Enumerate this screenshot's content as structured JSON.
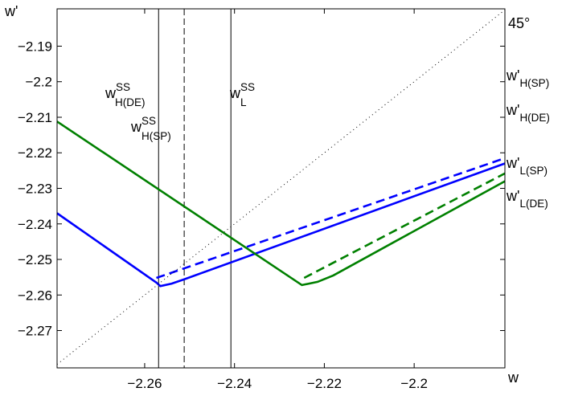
{
  "chart_data": {
    "type": "line",
    "xlabel": "w",
    "ylabel": "w'",
    "xlim": [
      -2.2795,
      -2.1798
    ],
    "ylim": [
      -2.2805,
      -2.1795
    ],
    "x_ticks": [
      -2.26,
      -2.24,
      -2.22,
      -2.2
    ],
    "x_tick_labels": [
      "−2.26",
      "−2.24",
      "−2.22",
      "−2.2"
    ],
    "y_ticks": [
      -2.19,
      -2.2,
      -2.21,
      -2.22,
      -2.23,
      -2.24,
      -2.25,
      -2.26,
      -2.27
    ],
    "y_tick_labels": [
      "−2.19",
      "−2.2",
      "−2.21",
      "−2.22",
      "−2.23",
      "−2.24",
      "−2.25",
      "−2.26",
      "−2.27"
    ],
    "grid": false,
    "series": [
      {
        "key": "H_DE",
        "color": "#0000ff",
        "style": "solid",
        "points": [
          [
            -2.2795,
            -2.237
          ],
          [
            -2.2574,
            -2.2565
          ],
          [
            -2.2565,
            -2.2575
          ],
          [
            -2.254,
            -2.2568
          ],
          [
            -2.251,
            -2.2555
          ],
          [
            -2.1798,
            -2.223
          ]
        ]
      },
      {
        "key": "H_SP",
        "color": "#0000ff",
        "style": "dashed",
        "points": [
          [
            -2.2574,
            -2.2552
          ],
          [
            -2.1798,
            -2.2215
          ]
        ]
      },
      {
        "key": "L_DE",
        "color": "#008000",
        "style": "solid",
        "points": [
          [
            -2.2795,
            -2.2112
          ],
          [
            -2.225,
            -2.2572
          ],
          [
            -2.2215,
            -2.2563
          ],
          [
            -2.218,
            -2.2545
          ],
          [
            -2.1798,
            -2.228
          ]
        ]
      },
      {
        "key": "L_SP",
        "color": "#008000",
        "style": "dashed",
        "points": [
          [
            -2.2245,
            -2.2552
          ],
          [
            -2.1798,
            -2.2258
          ]
        ]
      },
      {
        "key": "diag",
        "color": "#000000",
        "style": "dotted",
        "points": [
          [
            -2.2795,
            -2.2795
          ],
          [
            -2.1798,
            -2.1798
          ]
        ]
      }
    ],
    "vlines": [
      {
        "x": -2.2569,
        "style": "solid"
      },
      {
        "x": -2.2512,
        "style": "dashed"
      },
      {
        "x": -2.2408,
        "style": "solid"
      }
    ],
    "annotations": {
      "diag_label": "45°",
      "steady_states": [
        {
          "base": "w",
          "sup": "SS",
          "sub": "H(DE)"
        },
        {
          "base": "w",
          "sup": "SS",
          "sub": "H(SP)"
        },
        {
          "base": "w",
          "sup": "SS",
          "sub": "L"
        }
      ],
      "right_labels": [
        {
          "base": "w'",
          "sub": "H(SP)"
        },
        {
          "base": "w'",
          "sub": "H(DE)"
        },
        {
          "base": "w'",
          "sub": "L(SP)"
        },
        {
          "base": "w'",
          "sub": "L(DE)"
        }
      ]
    }
  }
}
